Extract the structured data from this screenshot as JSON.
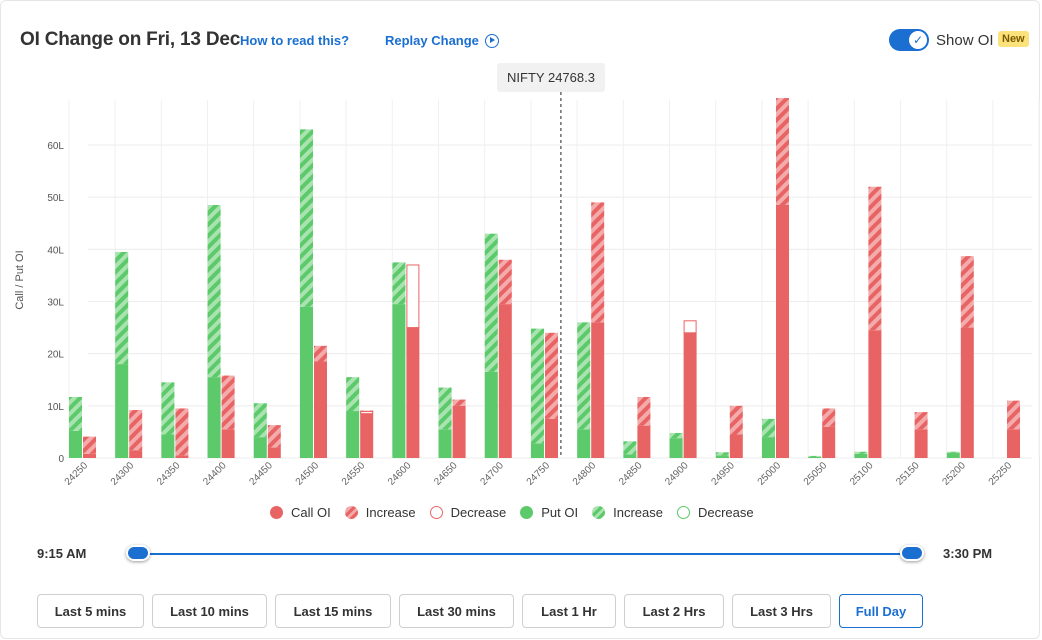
{
  "header": {
    "title": "OI Change on Fri, 13 Dec",
    "how_to_read": "How to read this?",
    "replay": "Replay Change",
    "show_oi_label": "Show OI",
    "new_badge": "New",
    "show_oi_enabled": true,
    "spot_label": "NIFTY 24768.3"
  },
  "colors": {
    "call": "#e86464",
    "call_light": "#f4abab",
    "put": "#5cc96a",
    "put_light": "#a9e4b0",
    "accent": "#1a6fd1"
  },
  "chart_data": {
    "type": "bar",
    "ylabel": "Call / Put OI",
    "yticks": [
      "0",
      "10L",
      "20L",
      "30L",
      "40L",
      "50L",
      "60L"
    ],
    "ylim": [
      0,
      68
    ],
    "unit": "L",
    "spot": 24768.3,
    "categories": [
      "24250",
      "24300",
      "24350",
      "24400",
      "24450",
      "24500",
      "24550",
      "24600",
      "24650",
      "24700",
      "24750",
      "24800",
      "24850",
      "24900",
      "24950",
      "25000",
      "25050",
      "25100",
      "25150",
      "25200",
      "25250"
    ],
    "series": [
      {
        "name": "Put OI",
        "values": [
          5.2,
          18,
          4.5,
          15.5,
          4,
          29,
          9,
          29.5,
          5.5,
          16.5,
          2.8,
          5.5,
          0.7,
          3.8,
          0.5,
          4,
          0.2,
          0.8,
          0,
          1,
          0
        ]
      },
      {
        "name": "Increase",
        "values": [
          6.5,
          21.5,
          10,
          33,
          6.5,
          34,
          6.5,
          8,
          8,
          26.5,
          22,
          20.5,
          2.5,
          1,
          0.6,
          3.5,
          0.2,
          0.4,
          0,
          0.2,
          0
        ]
      },
      {
        "name": "Decrease",
        "values": [
          0,
          0,
          0,
          0,
          0,
          0,
          0,
          0,
          0,
          0,
          0,
          0,
          0,
          0,
          0,
          0,
          0,
          0,
          0,
          0,
          0
        ]
      },
      {
        "name": "Call OI",
        "values": [
          0.8,
          1.5,
          0.5,
          5.5,
          2,
          18.5,
          8.5,
          25,
          10,
          29.5,
          7.5,
          26,
          6.2,
          24,
          4.5,
          48.5,
          6,
          24.5,
          5.5,
          25,
          5.5
        ]
      },
      {
        "name": "Increase",
        "values": [
          3.3,
          7.7,
          9,
          10.3,
          4.3,
          3,
          0.6,
          0,
          1.2,
          8.5,
          16.5,
          23,
          5.5,
          0,
          5.5,
          20.5,
          3.5,
          27.5,
          3.3,
          13.7,
          5.5
        ]
      },
      {
        "name": "Decrease",
        "values": [
          0,
          0,
          0,
          0,
          0,
          0,
          0.4,
          12,
          0,
          0,
          0,
          0,
          0,
          2.3,
          0,
          0,
          0,
          0,
          0,
          0,
          0
        ]
      }
    ]
  },
  "legend": [
    {
      "label": "Call OI",
      "style": "call-solid"
    },
    {
      "label": "Increase",
      "style": "call-hatch"
    },
    {
      "label": "Decrease",
      "style": "call-outline"
    },
    {
      "label": "Put OI",
      "style": "put-solid"
    },
    {
      "label": "Increase",
      "style": "put-hatch"
    },
    {
      "label": "Decrease",
      "style": "put-outline"
    }
  ],
  "range": {
    "start": "9:15 AM",
    "end": "3:30 PM"
  },
  "buttons": [
    {
      "label": "Last 5 mins",
      "active": false
    },
    {
      "label": "Last 10 mins",
      "active": false
    },
    {
      "label": "Last 15 mins",
      "active": false
    },
    {
      "label": "Last 30 mins",
      "active": false
    },
    {
      "label": "Last 1 Hr",
      "active": false
    },
    {
      "label": "Last 2 Hrs",
      "active": false
    },
    {
      "label": "Last 3 Hrs",
      "active": false
    },
    {
      "label": "Full Day",
      "active": true
    }
  ]
}
